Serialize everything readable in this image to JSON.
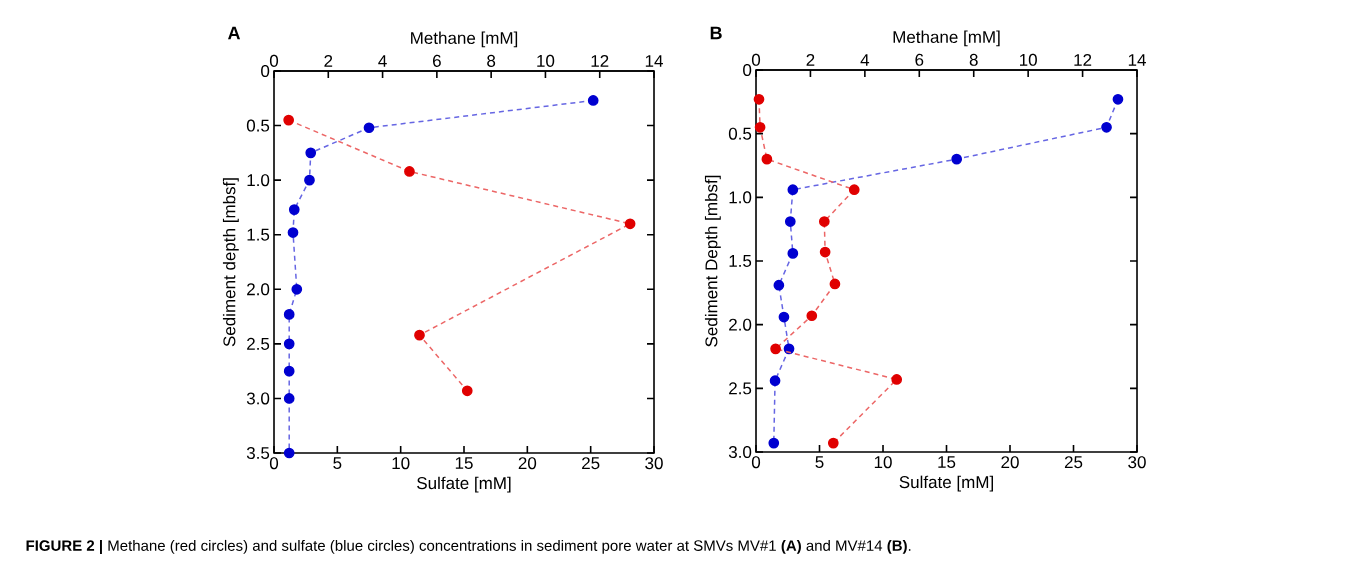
{
  "chart_data": [
    {
      "type": "line",
      "title": "A",
      "xlabel": "Sulfate [mM]",
      "x2label": "Methane [mM]",
      "ylabel": "Sediment depth [mbsf]",
      "xlim": [
        0,
        30
      ],
      "xticks": [
        0,
        5,
        10,
        15,
        20,
        25,
        30
      ],
      "x2lim": [
        0,
        14
      ],
      "x2ticks": [
        0,
        2,
        4,
        6,
        8,
        10,
        12,
        14
      ],
      "ylim": [
        3.5,
        0
      ],
      "yticks": [
        0,
        0.5,
        {
          "value": 1,
          "label": "1.0"
        },
        1.5,
        {
          "value": 2,
          "label": "2.0"
        },
        2.5,
        {
          "value": 3,
          "label": "3.0"
        },
        3.5
      ],
      "marker": "circle",
      "line_style": "dashed",
      "annotations": [
        "**FIGURE 2 |** Methane (red circles) and sulfate (blue circles) concentrations in sediment pore water at SMVs MV#1 **(A)** and MV#14 **(B)**."
      ],
      "series": [
        {
          "color": "#e00000",
          "axis": "x2",
          "x": [
            0.54,
            4.99,
            13.12,
            5.36,
            7.12
          ],
          "values": [
            0.45,
            0.92,
            1.4,
            2.42,
            2.93
          ]
        },
        {
          "color": "#0000d0",
          "x": [
            25.2,
            7.5,
            2.9,
            2.8,
            1.6,
            1.5,
            1.8,
            1.2,
            1.2,
            1.2,
            1.2,
            1.2
          ],
          "values": [
            0.27,
            0.52,
            0.75,
            1.0,
            1.27,
            1.48,
            2.0,
            2.23,
            2.5,
            2.75,
            3.0,
            3.5
          ]
        }
      ]
    },
    {
      "type": "line",
      "title": "B",
      "xlabel": "Sulfate [mM]",
      "x2label": "Methane [mM]",
      "ylabel": "Sediment Depth [mbsf]",
      "xlim": [
        0,
        30
      ],
      "xticks": [
        0,
        5,
        10,
        15,
        20,
        25,
        30
      ],
      "x2lim": [
        0,
        14
      ],
      "x2ticks": [
        0,
        2,
        4,
        6,
        8,
        10,
        12,
        14
      ],
      "ylim": [
        3,
        0
      ],
      "yticks": [
        0,
        0.5,
        {
          "value": 1,
          "label": "1.0"
        },
        1.5,
        {
          "value": 2,
          "label": "2.0"
        },
        2.5,
        {
          "value": 3,
          "label": "3.0"
        }
      ],
      "marker": "circle",
      "line_style": "dashed",
      "series": [
        {
          "color": "#e00000",
          "axis": "x2",
          "x": [
            0.11,
            0.15,
            0.4,
            3.61,
            2.51,
            2.54,
            2.9,
            2.05,
            0.72,
            5.17,
            2.84
          ],
          "values": [
            0.23,
            0.45,
            0.7,
            0.94,
            1.19,
            1.43,
            1.68,
            1.93,
            2.19,
            2.43,
            2.93
          ]
        },
        {
          "color": "#0000d0",
          "x": [
            28.5,
            27.6,
            15.8,
            2.9,
            2.7,
            2.9,
            1.8,
            2.2,
            2.6,
            1.5,
            1.4
          ],
          "values": [
            0.23,
            0.45,
            0.7,
            0.94,
            1.19,
            1.44,
            1.69,
            1.94,
            2.19,
            2.44,
            2.93
          ]
        }
      ]
    }
  ]
}
